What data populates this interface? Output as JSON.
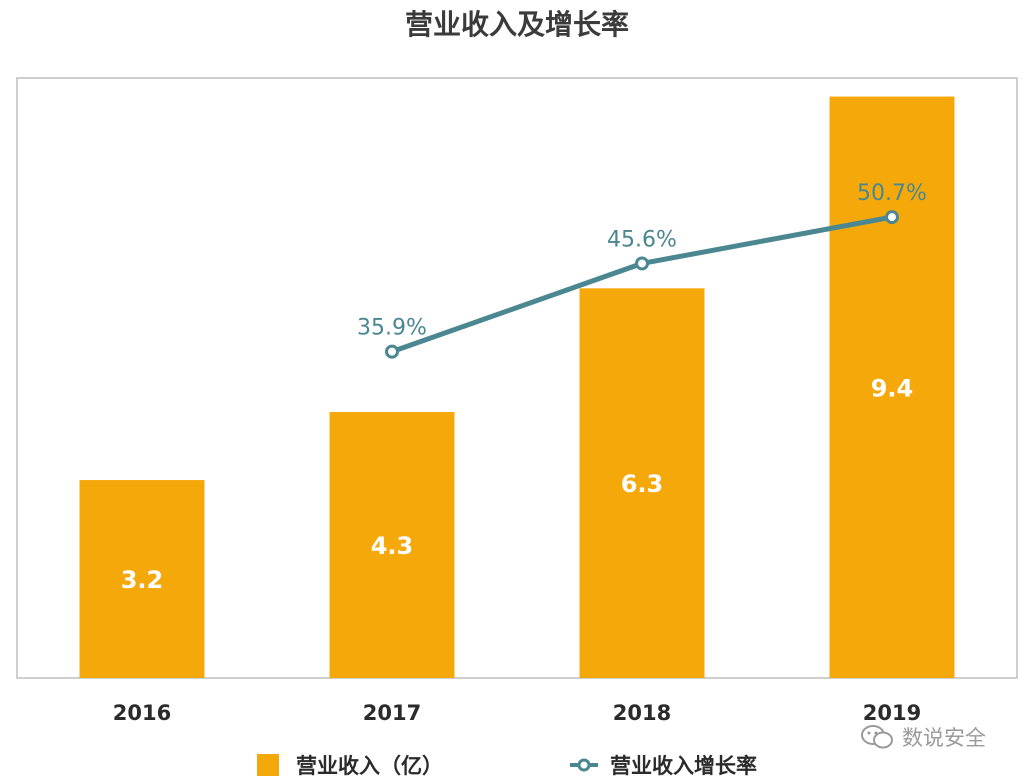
{
  "chart_data": {
    "type": "bar",
    "title": "营业收入及增长率",
    "categories": [
      "2016",
      "2017",
      "2018",
      "2019"
    ],
    "series": [
      {
        "name": "营业收入（亿）",
        "type": "bar",
        "values": [
          3.2,
          4.3,
          6.3,
          9.4
        ],
        "labels": [
          "3.2",
          "4.3",
          "6.3",
          "9.4"
        ],
        "color": "#F5A80A"
      },
      {
        "name": "营业收入增长率",
        "type": "line",
        "values": [
          null,
          35.9,
          45.6,
          50.7
        ],
        "labels": [
          "",
          "35.9%",
          "45.6%",
          "50.7%"
        ],
        "color": "#4A8790"
      }
    ],
    "ylim": [
      0,
      9.7
    ],
    "y2lim": [
      0,
      66
    ],
    "grid": false,
    "legend": "bottom"
  },
  "colors": {
    "bar": "#F5A80A",
    "line": "#4A8790",
    "frame": "#bfbfbf"
  },
  "watermark": {
    "text": "数说安全",
    "icon": "wechat-icon"
  }
}
